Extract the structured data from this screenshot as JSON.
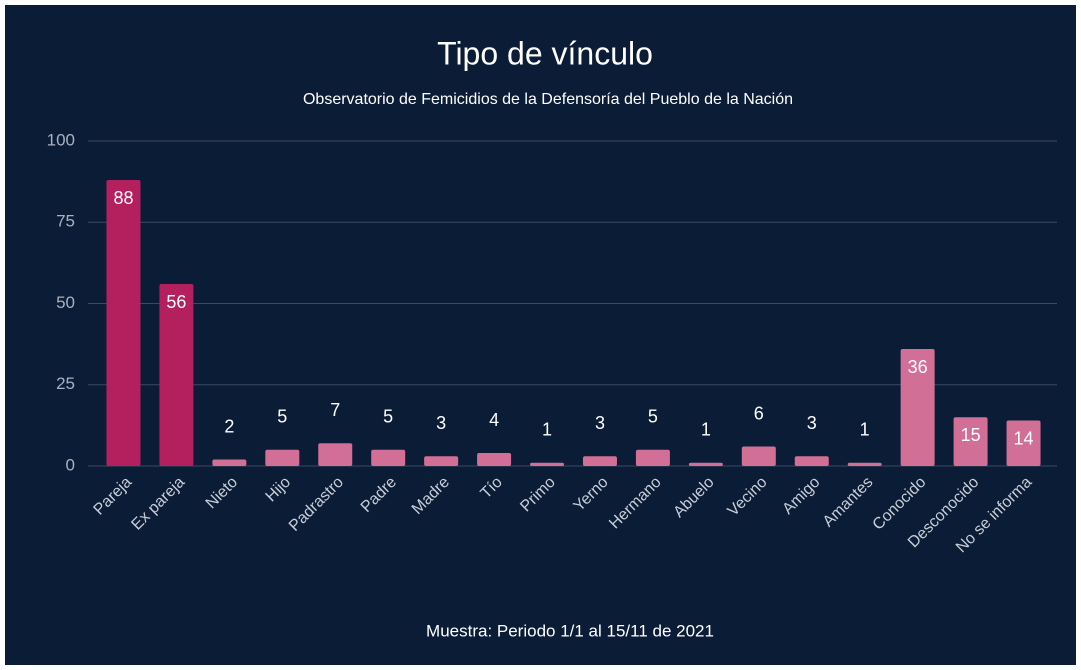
{
  "chart_data": {
    "type": "bar",
    "title": "Tipo de vínculo",
    "subtitle": "Observatorio de Femicidios de la Defensoría del Pueblo de la Nación",
    "footer": "Muestra: Periodo 1/1 al 15/11 de 2021",
    "categories": [
      "Pareja",
      "Ex pareja",
      "Nieto",
      "Hijo",
      "Padrastro",
      "Padre",
      "Madre",
      "Tío",
      "Primo",
      "Yerno",
      "Hermano",
      "Abuelo",
      "Vecino",
      "Amigo",
      "Amantes",
      "Conocido",
      "Desconocido",
      "No se informa"
    ],
    "values": [
      88,
      56,
      2,
      5,
      7,
      5,
      3,
      4,
      1,
      3,
      5,
      1,
      6,
      3,
      1,
      36,
      15,
      14
    ],
    "colors": [
      "#b4205d",
      "#b4205d",
      "#d16f97",
      "#d16f97",
      "#d16f97",
      "#d16f97",
      "#d16f97",
      "#d16f97",
      "#d16f97",
      "#d16f97",
      "#d16f97",
      "#d16f97",
      "#d16f97",
      "#d16f97",
      "#d16f97",
      "#d16f97",
      "#d16f97",
      "#d16f97"
    ],
    "ylim": [
      0,
      100
    ],
    "yticks": [
      0,
      25,
      50,
      75,
      100
    ],
    "grid": true
  }
}
